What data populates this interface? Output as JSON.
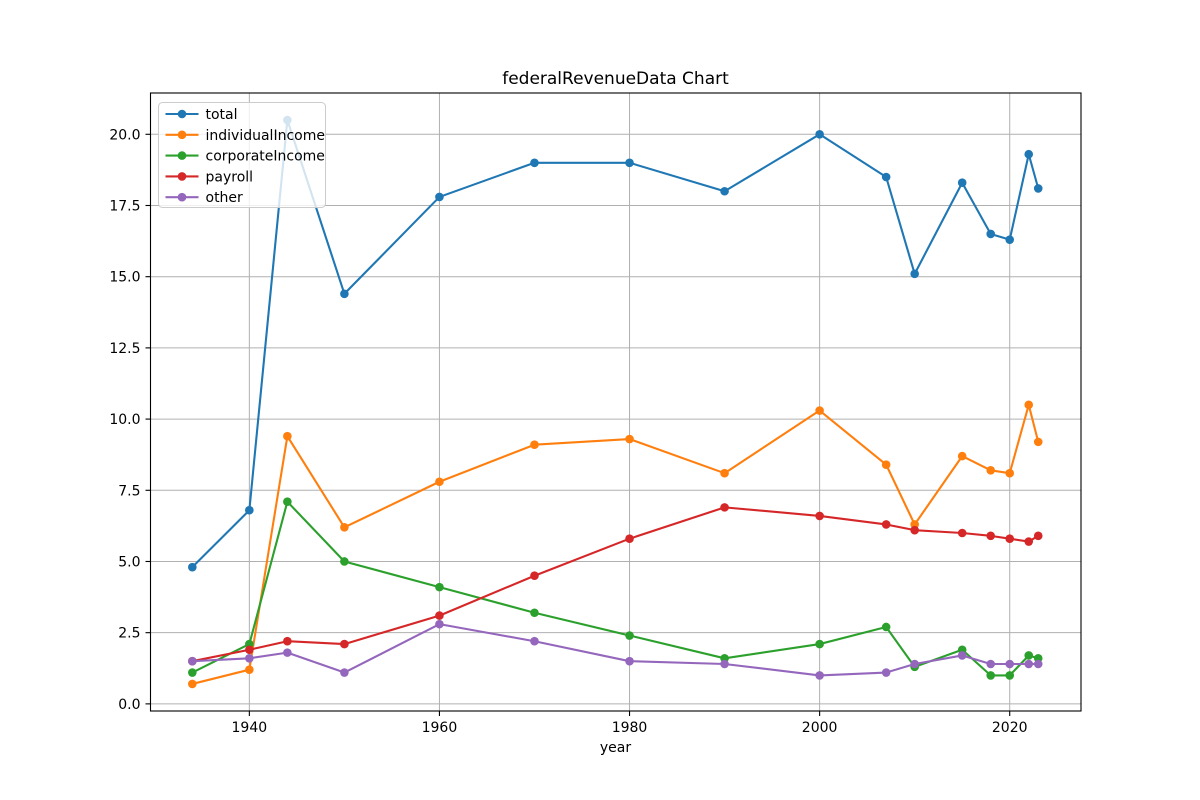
{
  "figure": {
    "background": "#ffffff"
  },
  "chart_data": {
    "type": "line",
    "title": "federalRevenueData Chart",
    "xlabel": "year",
    "ylabel": "",
    "x": [
      1934,
      1940,
      1944,
      1950,
      1960,
      1970,
      1980,
      1990,
      2000,
      2007,
      2010,
      2015,
      2018,
      2020,
      2022,
      2023
    ],
    "series": [
      {
        "name": "total",
        "color": "#1f77b4",
        "values": [
          4.8,
          6.8,
          20.5,
          14.4,
          17.8,
          19.0,
          19.0,
          18.0,
          20.0,
          18.5,
          15.1,
          18.3,
          16.5,
          16.3,
          19.3,
          18.1
        ]
      },
      {
        "name": "individualIncome",
        "color": "#ff7f0e",
        "values": [
          0.7,
          1.2,
          9.4,
          6.2,
          7.8,
          9.1,
          9.3,
          8.1,
          10.3,
          8.4,
          6.3,
          8.7,
          8.2,
          8.1,
          10.5,
          9.2
        ]
      },
      {
        "name": "corporateIncome",
        "color": "#2ca02c",
        "values": [
          1.1,
          2.1,
          7.1,
          5.0,
          4.1,
          3.2,
          2.4,
          1.6,
          2.1,
          2.7,
          1.3,
          1.9,
          1.0,
          1.0,
          1.7,
          1.6
        ]
      },
      {
        "name": "payroll",
        "color": "#d62728",
        "values": [
          1.5,
          1.9,
          2.2,
          2.1,
          3.1,
          4.5,
          5.8,
          6.9,
          6.6,
          6.3,
          6.1,
          6.0,
          5.9,
          5.8,
          5.7,
          5.9
        ]
      },
      {
        "name": "other",
        "color": "#9467bd",
        "values": [
          1.5,
          1.6,
          1.8,
          1.1,
          2.8,
          2.2,
          1.5,
          1.4,
          1.0,
          1.1,
          1.4,
          1.7,
          1.4,
          1.4,
          1.4,
          1.4
        ]
      }
    ],
    "xlim": [
      1929.6,
      2027.5
    ],
    "ylim": [
      -0.25,
      21.45
    ],
    "xticks": [
      1940,
      1960,
      1980,
      2000,
      2020
    ],
    "ytick_labels": [
      "0.0",
      "2.5",
      "5.0",
      "7.5",
      "10.0",
      "12.5",
      "15.0",
      "17.5",
      "20.0"
    ],
    "yticks": [
      0.0,
      2.5,
      5.0,
      7.5,
      10.0,
      12.5,
      15.0,
      17.5,
      20.0
    ],
    "grid": true,
    "grid_color": "#b0b0b0",
    "spine_color": "#000000",
    "legend_position": "upper left",
    "legend_frame_color": "#cccccc",
    "marker": "o"
  }
}
